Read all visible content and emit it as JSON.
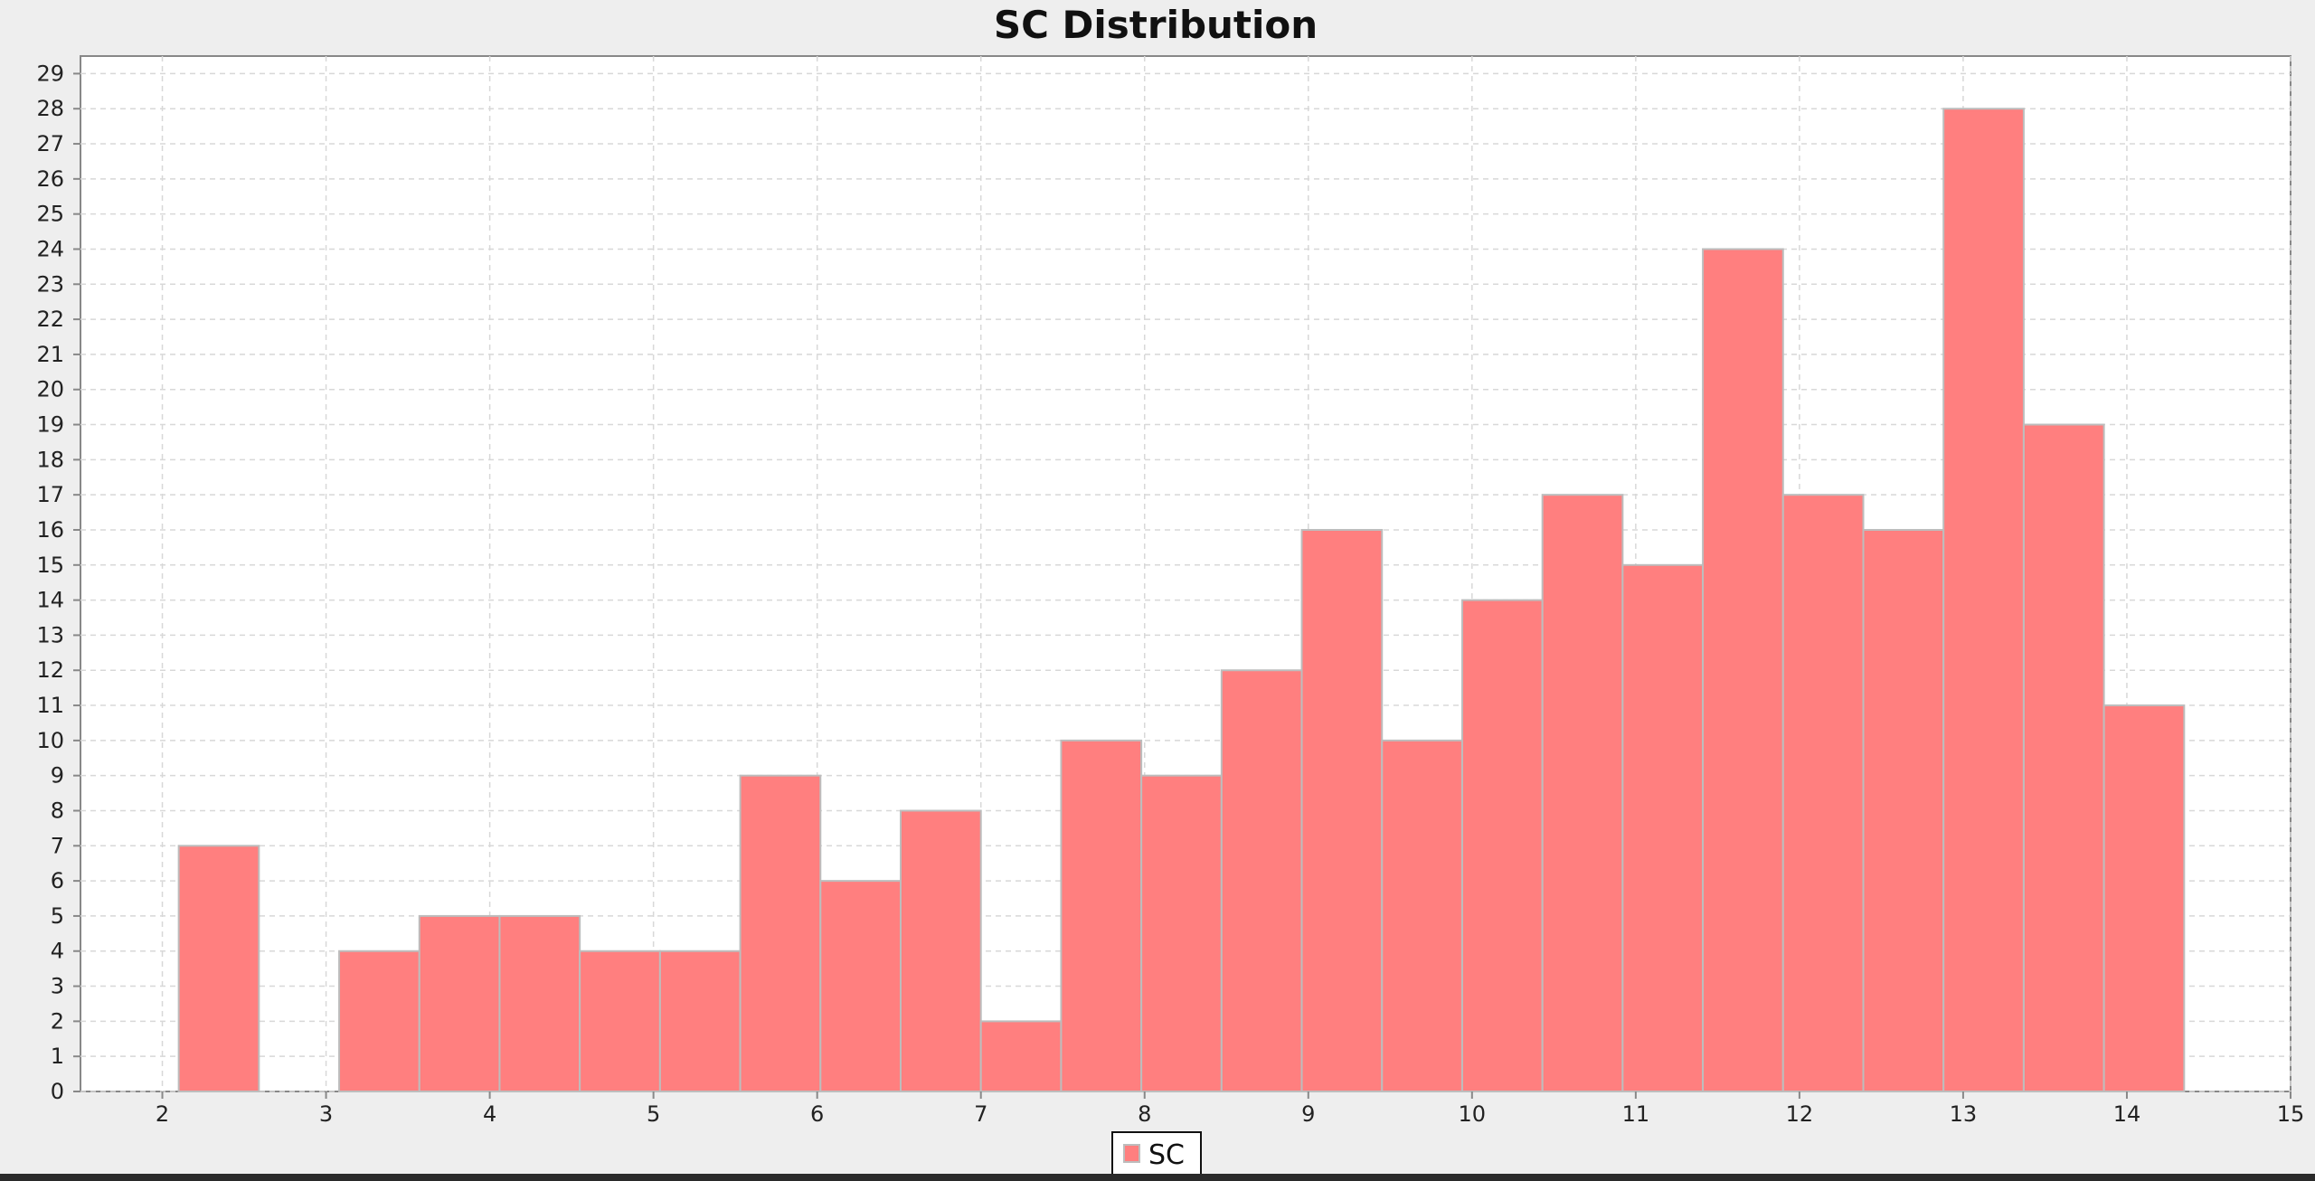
{
  "chart_data": {
    "type": "bar",
    "title": "SC Distribution",
    "xlabel": "",
    "ylabel": "",
    "xlim": [
      1.5,
      15
    ],
    "ylim": [
      0,
      29.5
    ],
    "bin_width": 0.49,
    "x_ticks": [
      2,
      3,
      4,
      5,
      6,
      7,
      8,
      9,
      10,
      11,
      12,
      13,
      14,
      15
    ],
    "y_ticks": [
      0,
      1,
      2,
      3,
      4,
      5,
      6,
      7,
      8,
      9,
      10,
      11,
      12,
      13,
      14,
      15,
      16,
      17,
      18,
      19,
      20,
      21,
      22,
      23,
      24,
      25,
      26,
      27,
      28,
      29
    ],
    "grid": true,
    "legend_position": "bottom-center",
    "series": [
      {
        "name": "SC",
        "color": "#ff7f7f",
        "bins": [
          {
            "x0": 2.1,
            "x1": 2.59,
            "value": 7
          },
          {
            "x0": 2.59,
            "x1": 3.08,
            "value": 0
          },
          {
            "x0": 3.08,
            "x1": 3.57,
            "value": 4
          },
          {
            "x0": 3.57,
            "x1": 4.06,
            "value": 5
          },
          {
            "x0": 4.06,
            "x1": 4.55,
            "value": 5
          },
          {
            "x0": 4.55,
            "x1": 5.04,
            "value": 4
          },
          {
            "x0": 5.04,
            "x1": 5.53,
            "value": 4
          },
          {
            "x0": 5.53,
            "x1": 6.02,
            "value": 9
          },
          {
            "x0": 6.02,
            "x1": 6.51,
            "value": 6
          },
          {
            "x0": 6.51,
            "x1": 7.0,
            "value": 8
          },
          {
            "x0": 7.0,
            "x1": 7.49,
            "value": 2
          },
          {
            "x0": 7.49,
            "x1": 7.98,
            "value": 10
          },
          {
            "x0": 7.98,
            "x1": 8.47,
            "value": 9
          },
          {
            "x0": 8.47,
            "x1": 8.96,
            "value": 12
          },
          {
            "x0": 8.96,
            "x1": 9.45,
            "value": 16
          },
          {
            "x0": 9.45,
            "x1": 9.94,
            "value": 10
          },
          {
            "x0": 9.94,
            "x1": 10.43,
            "value": 14
          },
          {
            "x0": 10.43,
            "x1": 10.92,
            "value": 17
          },
          {
            "x0": 10.92,
            "x1": 11.41,
            "value": 15
          },
          {
            "x0": 11.41,
            "x1": 11.9,
            "value": 24
          },
          {
            "x0": 11.9,
            "x1": 12.39,
            "value": 17
          },
          {
            "x0": 12.39,
            "x1": 12.88,
            "value": 16
          },
          {
            "x0": 12.88,
            "x1": 13.37,
            "value": 28
          },
          {
            "x0": 13.37,
            "x1": 13.86,
            "value": 19
          },
          {
            "x0": 13.86,
            "x1": 14.35,
            "value": 11
          }
        ]
      }
    ]
  },
  "colors": {
    "plot_background": "#ffffff",
    "page_background": "#eeeeee",
    "grid": "#d8d8d8",
    "bar_fill": "#ff7f7f",
    "bar_outline": "#bdbdbd",
    "axis": "#888888"
  }
}
